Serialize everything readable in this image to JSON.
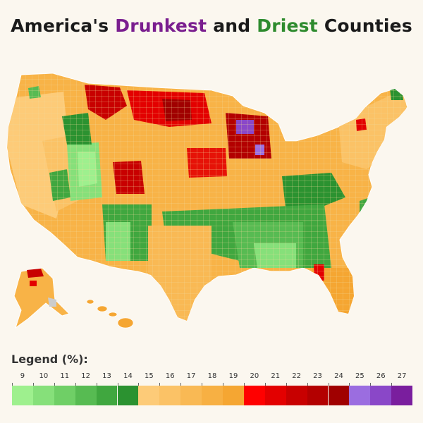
{
  "title": {
    "part1": "America's ",
    "drunk": "Drunkest",
    "part2": " and ",
    "dry": "Driest",
    "part3": " Counties"
  },
  "legend": {
    "title": "Legend (%):",
    "items": [
      {
        "value": "9",
        "color": "#9ef08e"
      },
      {
        "value": "10",
        "color": "#86e07a"
      },
      {
        "value": "11",
        "color": "#6fcf66"
      },
      {
        "value": "12",
        "color": "#57bb52"
      },
      {
        "value": "13",
        "color": "#40a73f"
      },
      {
        "value": "14",
        "color": "#2b9230"
      },
      {
        "value": "15",
        "color": "#fdcb78"
      },
      {
        "value": "16",
        "color": "#fbc266"
      },
      {
        "value": "17",
        "color": "#f9b954"
      },
      {
        "value": "18",
        "color": "#f7b043"
      },
      {
        "value": "19",
        "color": "#f5a632"
      },
      {
        "value": "20",
        "color": "#ff0000"
      },
      {
        "value": "21",
        "color": "#e30000"
      },
      {
        "value": "22",
        "color": "#c80000"
      },
      {
        "value": "23",
        "color": "#b30000"
      },
      {
        "value": "24",
        "color": "#a00000"
      },
      {
        "value": "25",
        "color": "#9b6de0"
      },
      {
        "value": "26",
        "color": "#8a47c8"
      },
      {
        "value": "27",
        "color": "#7a1e9e"
      }
    ]
  },
  "map": {
    "base_color": "#f8b347",
    "county_line_color": "#f2d99a"
  }
}
